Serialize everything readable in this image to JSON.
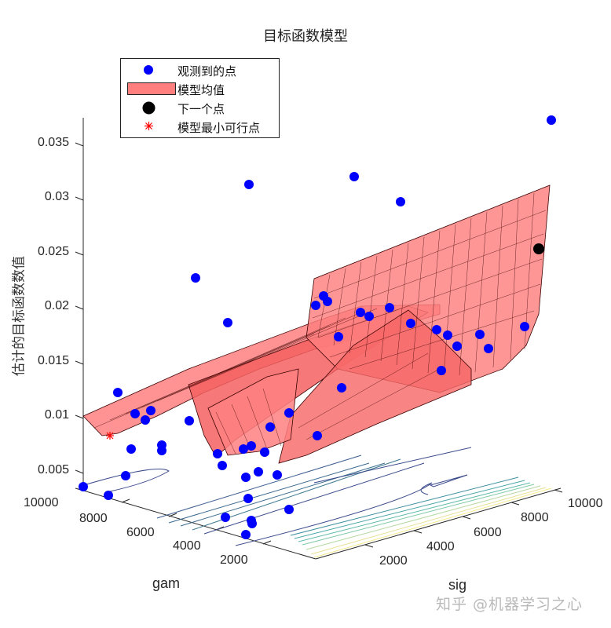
{
  "chart_data": {
    "type": "surface3d",
    "title": "目标函数模型",
    "xlabel": "sig",
    "ylabel": "gam",
    "zlabel": "估计的目标函数数值",
    "xlim": [
      0,
      10000
    ],
    "ylim": [
      0,
      10000
    ],
    "zlim": [
      0.003,
      0.037
    ],
    "x_ticks": [
      "2000",
      "4000",
      "6000",
      "8000",
      "10000"
    ],
    "y_ticks": [
      "2000",
      "4000",
      "6000",
      "8000",
      "10000"
    ],
    "z_ticks": [
      "0.005",
      "0.01",
      "0.015",
      "0.02",
      "0.025",
      "0.03",
      "0.035"
    ],
    "legend": {
      "position": "upper-left",
      "entries": [
        {
          "label": "观测到的点",
          "marker": "circle",
          "color": "#0000ff"
        },
        {
          "label": "模型均值",
          "marker": "patch",
          "color": "#ff7f7f"
        },
        {
          "label": "下一个点",
          "marker": "circle",
          "color": "#000000"
        },
        {
          "label": "模型最小可行点",
          "marker": "asterisk",
          "color": "#ff0000"
        }
      ]
    },
    "colors": {
      "observed": "#0000ff",
      "surface": "#ff7f7f",
      "next_point": "#000000",
      "min_feasible": "#ff0000",
      "contour_low": "#3b4b8c",
      "contour_high": "#f5e98a"
    },
    "observed_points_screen": [
      [
        702,
        153
      ],
      [
        451,
        225
      ],
      [
        317,
        235
      ],
      [
        510,
        257
      ],
      [
        249,
        354
      ],
      [
        290,
        411
      ],
      [
        150,
        500
      ],
      [
        172,
        527
      ],
      [
        192,
        523
      ],
      [
        185,
        535
      ],
      [
        241,
        536
      ],
      [
        368,
        526
      ],
      [
        344,
        544
      ],
      [
        404,
        555
      ],
      [
        167,
        572
      ],
      [
        206,
        567
      ],
      [
        206,
        574
      ],
      [
        277,
        578
      ],
      [
        310,
        572
      ],
      [
        320,
        568
      ],
      [
        337,
        576
      ],
      [
        313,
        608
      ],
      [
        283,
        593
      ],
      [
        353,
        605
      ],
      [
        329,
        601
      ],
      [
        160,
        606
      ],
      [
        106,
        620
      ],
      [
        138,
        631
      ],
      [
        316,
        635
      ],
      [
        368,
        649
      ],
      [
        287,
        659
      ],
      [
        320,
        663
      ],
      [
        321,
        667
      ],
      [
        313,
        681
      ],
      [
        668,
        416
      ],
      [
        402,
        389
      ],
      [
        412,
        377
      ],
      [
        417,
        384
      ],
      [
        431,
        429
      ],
      [
        459,
        398
      ],
      [
        470,
        403
      ],
      [
        496,
        392
      ],
      [
        523,
        412
      ],
      [
        556,
        420
      ],
      [
        570,
        427
      ],
      [
        582,
        441
      ],
      [
        611,
        426
      ],
      [
        622,
        444
      ],
      [
        562,
        472
      ],
      [
        435,
        494
      ]
    ],
    "next_point_screen": [
      686,
      317
    ],
    "min_feasible_screen": [
      140,
      555
    ],
    "contour_levels": 10
  },
  "watermark": "知乎 @机器学习之心"
}
